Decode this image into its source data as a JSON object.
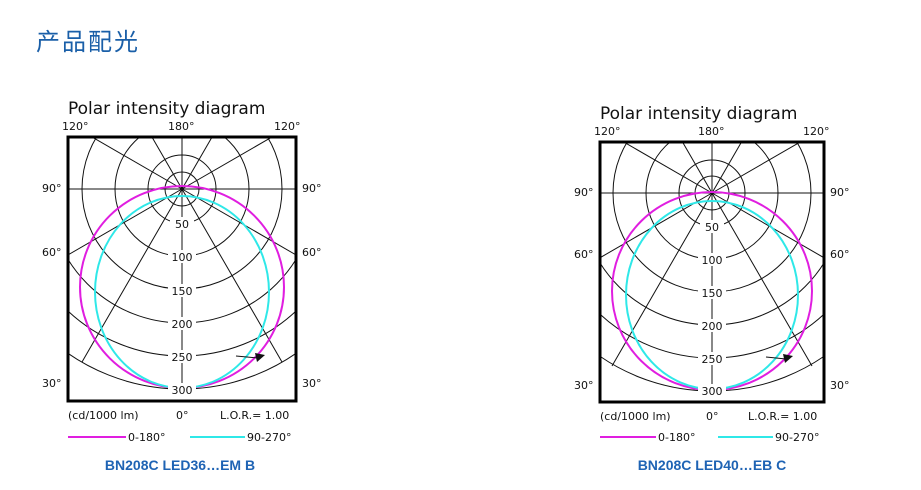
{
  "page_title": "产品配光",
  "colors": {
    "title": "#1a5fa8",
    "series_a": "#e01ee0",
    "series_b": "#2fe8e8",
    "caption": "#1e63b4"
  },
  "diagrams": [
    {
      "title": "Polar intensity diagram",
      "angle_labels": {
        "top_left": "120°",
        "top_center": "180°",
        "top_right": "120°",
        "left_90": "90°",
        "right_90": "90°",
        "left_60": "60°",
        "right_60": "60°",
        "left_30": "30°",
        "right_30": "30°"
      },
      "radial_labels": [
        "50",
        "100",
        "150",
        "200",
        "250",
        "300"
      ],
      "unit": "(cd/1000 lm)",
      "zero": "0°",
      "lor": "L.O.R.= 1.00",
      "legend": [
        {
          "name": "0-180°"
        },
        {
          "name": "90-270°"
        }
      ],
      "caption": "BN208C LED36…EM B"
    },
    {
      "title": "Polar intensity diagram",
      "angle_labels": {
        "top_left": "120°",
        "top_center": "180°",
        "top_right": "120°",
        "left_90": "90°",
        "right_90": "90°",
        "left_60": "60°",
        "right_60": "60°",
        "left_30": "30°",
        "right_30": "30°"
      },
      "radial_labels": [
        "50",
        "100",
        "150",
        "200",
        "250",
        "300"
      ],
      "unit": "(cd/1000 lm)",
      "zero": "0°",
      "lor": "L.O.R.= 1.00",
      "legend": [
        {
          "name": "0-180°"
        },
        {
          "name": "90-270°"
        }
      ],
      "caption": "BN208C LED40…EB C"
    }
  ]
}
